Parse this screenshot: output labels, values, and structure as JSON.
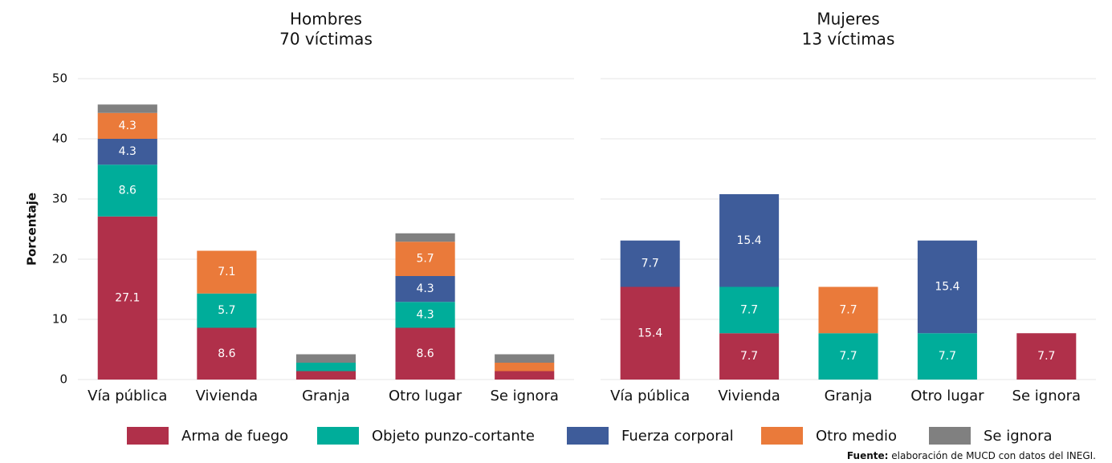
{
  "chart_data": [
    {
      "type": "stacked_bar",
      "title": "Hombres",
      "subtitle": "70 víctimas",
      "y_label": "Porcentaje",
      "categories": [
        "Vía pública",
        "Vivienda",
        "Granja",
        "Otro lugar",
        "Se ignora"
      ],
      "series": [
        {
          "name": "Arma de fuego",
          "color": "#b0304a",
          "values": [
            27.1,
            8.6,
            1.4,
            8.6,
            1.4
          ]
        },
        {
          "name": "Objeto punzo-cortante",
          "color": "#00ad9a",
          "values": [
            8.6,
            5.7,
            1.4,
            4.3,
            0
          ]
        },
        {
          "name": "Fuerza corporal",
          "color": "#3e5c9a",
          "values": [
            4.3,
            0,
            0,
            4.3,
            0
          ]
        },
        {
          "name": "Otro medio",
          "color": "#ea7a3a",
          "values": [
            4.3,
            7.1,
            0,
            5.7,
            1.4
          ]
        },
        {
          "name": "Se ignora",
          "color": "#808080",
          "values": [
            1.4,
            0,
            1.4,
            1.4,
            1.4
          ]
        }
      ],
      "ylim": [
        0,
        50
      ],
      "yticks": [
        0,
        10,
        20,
        30,
        40,
        50
      ],
      "grid": true
    },
    {
      "type": "stacked_bar",
      "title": "Mujeres",
      "subtitle": "13 víctimas",
      "categories": [
        "Vía pública",
        "Vivienda",
        "Granja",
        "Otro lugar",
        "Se ignora"
      ],
      "series": [
        {
          "name": "Arma de fuego",
          "color": "#b0304a",
          "values": [
            15.4,
            7.7,
            0,
            0,
            7.7
          ]
        },
        {
          "name": "Objeto punzo-cortante",
          "color": "#00ad9a",
          "values": [
            0,
            7.7,
            7.7,
            7.7,
            0
          ]
        },
        {
          "name": "Fuerza corporal",
          "color": "#3e5c9a",
          "values": [
            7.7,
            15.4,
            0,
            15.4,
            0
          ]
        },
        {
          "name": "Otro medio",
          "color": "#ea7a3a",
          "values": [
            0,
            0,
            7.7,
            0,
            0
          ]
        },
        {
          "name": "Se ignora",
          "color": "#808080",
          "values": [
            0,
            0,
            0,
            0,
            0
          ]
        }
      ],
      "ylim": [
        0,
        50
      ],
      "yticks": [
        0,
        10,
        20,
        30,
        40,
        50
      ],
      "grid": true
    }
  ],
  "source": {
    "label": "Fuente:",
    "text": "elaboración de MUCD con datos del INEGI."
  }
}
